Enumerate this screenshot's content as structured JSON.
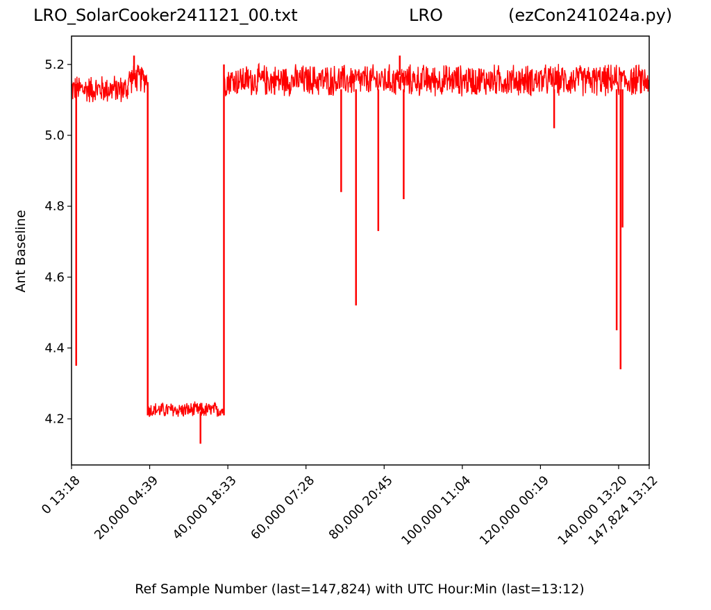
{
  "chart_data": {
    "type": "line",
    "title_left": "LRO_SolarCooker241121_00.txt",
    "title_center": "LRO",
    "title_right": "(ezCon241024a.py)",
    "xlabel": "Ref Sample Number (last=147,824) with UTC Hour:Min (last=13:12)",
    "ylabel": "Ant Baseline",
    "xlim": [
      0,
      147824
    ],
    "ylim": [
      4.07,
      5.28
    ],
    "grid": false,
    "line_color": "#ff0000",
    "xticks": [
      {
        "value": 0,
        "label": "0  13:18"
      },
      {
        "value": 20000,
        "label": "20,000  04:39"
      },
      {
        "value": 40000,
        "label": "40,000  18:33"
      },
      {
        "value": 60000,
        "label": "60,000  07:28"
      },
      {
        "value": 80000,
        "label": "80,000  20:45"
      },
      {
        "value": 100000,
        "label": "100,000  11:04"
      },
      {
        "value": 120000,
        "label": "120,000  00:19"
      },
      {
        "value": 140000,
        "label": "140,000  13:20"
      },
      {
        "value": 147824,
        "label": "147,824  13:12"
      }
    ],
    "yticks": [
      {
        "value": 4.2,
        "label": "4.2"
      },
      {
        "value": 4.4,
        "label": "4.4"
      },
      {
        "value": 4.6,
        "label": "4.6"
      },
      {
        "value": 4.8,
        "label": "4.8"
      },
      {
        "value": 5.0,
        "label": "5.0"
      },
      {
        "value": 5.2,
        "label": "5.2"
      }
    ],
    "segments": [
      {
        "x": [
          0,
          14500
        ],
        "center": 5.13,
        "noise": 0.045
      },
      {
        "x": [
          14500,
          19500
        ],
        "center": 5.16,
        "noise": 0.045
      },
      {
        "x": [
          19600,
          39000
        ],
        "center": 4.225,
        "noise": 0.025
      },
      {
        "x": [
          39000,
          147824
        ],
        "center": 5.155,
        "noise": 0.05
      }
    ],
    "transitions": [
      {
        "x": 19500,
        "from": 5.15,
        "to": 4.21
      },
      {
        "x": 39000,
        "from": 4.21,
        "to": 5.2
      }
    ],
    "dips": [
      {
        "x": 1200,
        "y": 4.35
      },
      {
        "x": 33000,
        "y": 4.13
      },
      {
        "x": 69000,
        "y": 4.84
      },
      {
        "x": 72800,
        "y": 4.52
      },
      {
        "x": 78500,
        "y": 4.73
      },
      {
        "x": 85000,
        "y": 4.82
      },
      {
        "x": 123500,
        "y": 5.02
      },
      {
        "x": 139500,
        "y": 4.45
      },
      {
        "x": 140500,
        "y": 4.34
      },
      {
        "x": 141000,
        "y": 4.74
      }
    ],
    "peaks": [
      {
        "x": 16000,
        "y": 5.225
      },
      {
        "x": 84000,
        "y": 5.225
      }
    ]
  }
}
